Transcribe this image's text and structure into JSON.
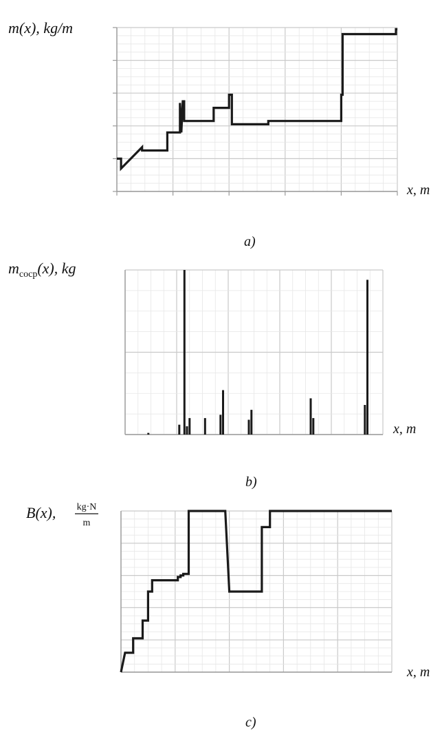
{
  "chart_data": [
    {
      "type": "line",
      "panel_label": "a)",
      "ylabel": "m(x), kg/m",
      "xlabel": "x, m",
      "xlim": [
        0,
        100
      ],
      "ylim": [
        0,
        100
      ],
      "grid": true,
      "series": [
        {
          "x": [
            0,
            1.5,
            1.5,
            9,
            9,
            18,
            18,
            22.5,
            22.5,
            23,
            23.5,
            24,
            24,
            27,
            27,
            34.5,
            34.5,
            40,
            40,
            41,
            41,
            54,
            54,
            80,
            80,
            80,
            80,
            80.5,
            80.5,
            99.5,
            99.5,
            100
          ],
          "y": [
            20,
            20,
            14,
            27,
            25,
            25,
            36,
            36,
            54,
            36,
            55,
            55,
            43,
            43,
            43,
            43,
            51,
            51,
            59,
            59,
            41,
            41,
            43,
            43,
            59,
            59,
            59,
            59,
            96,
            96,
            99,
            99
          ]
        }
      ]
    },
    {
      "type": "bar",
      "panel_label": "b)",
      "ylabel": "m_cocp(x), kg",
      "ylabel_main": "m",
      "ylabel_sub": "cocp",
      "ylabel_rest": "(x), kg",
      "xlabel": "x, m",
      "xlim": [
        0,
        100
      ],
      "ylim": [
        0,
        100
      ],
      "grid": true,
      "x": [
        9,
        21,
        23,
        24,
        25,
        31,
        37,
        38,
        48,
        49,
        72,
        73,
        93,
        94
      ],
      "values": [
        1,
        6,
        100,
        5,
        10,
        10,
        12,
        27,
        9,
        15,
        22,
        10,
        18,
        94
      ]
    },
    {
      "type": "line",
      "panel_label": "c)",
      "ylabel_main": "B(x),",
      "ylabel_num": "kg·N",
      "ylabel_den": "m",
      "xlabel": "x, m",
      "xlim": [
        0,
        100
      ],
      "ylim": [
        0,
        100
      ],
      "grid": true,
      "series": [
        {
          "x": [
            0,
            1.5,
            4.5,
            4.5,
            8,
            8,
            10,
            10,
            11.5,
            11.5,
            21,
            21,
            22,
            22,
            23,
            23,
            25,
            25,
            26,
            26,
            38.5,
            38.5,
            40,
            40,
            52,
            52,
            55,
            55,
            56,
            56,
            100
          ],
          "y": [
            0,
            12,
            12,
            21,
            21,
            32,
            32,
            50,
            50,
            57,
            57,
            59,
            59,
            60,
            60,
            61,
            61,
            100,
            100,
            100,
            100,
            100,
            50,
            50,
            50,
            90,
            90,
            100,
            100,
            100,
            100
          ]
        }
      ]
    }
  ]
}
